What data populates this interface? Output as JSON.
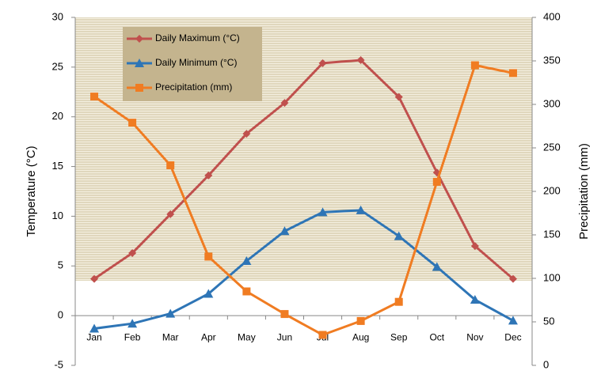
{
  "chart_data": {
    "type": "line",
    "categories": [
      "Jan",
      "Feb",
      "Mar",
      "Apr",
      "May",
      "Jun",
      "Jul",
      "Aug",
      "Sep",
      "Oct",
      "Nov",
      "Dec"
    ],
    "series": [
      {
        "name": "Daily Maximum (°C)",
        "color": "#c0504d",
        "marker": "diamond",
        "values": [
          3.7,
          6.3,
          10.2,
          14.1,
          18.3,
          21.4,
          25.4,
          25.7,
          22.0,
          14.4,
          7.0,
          3.7
        ]
      },
      {
        "name": "Daily Minimum (°C)",
        "color": "#2e75b6",
        "marker": "triangle",
        "values": [
          -1.3,
          -0.8,
          0.2,
          2.2,
          5.5,
          8.5,
          10.4,
          10.6,
          8.0,
          4.9,
          1.6,
          -0.5
        ]
      },
      {
        "name": "Precipitation (mm)",
        "color": "#f07c22",
        "marker": "square",
        "axis": "y2",
        "values": [
          309,
          279,
          230,
          125,
          85,
          59,
          35,
          51,
          73,
          211,
          345,
          336
        ]
      }
    ],
    "ylabel": "Temperature (°C)",
    "y2label": "Precipitation (mm)",
    "ylim": [
      -5,
      30
    ],
    "yticks": [
      -5,
      0,
      5,
      10,
      15,
      20,
      25,
      30
    ],
    "y2lim": [
      0,
      400
    ],
    "y2ticks": [
      0,
      50,
      100,
      150,
      200,
      250,
      300,
      350,
      400
    ]
  }
}
